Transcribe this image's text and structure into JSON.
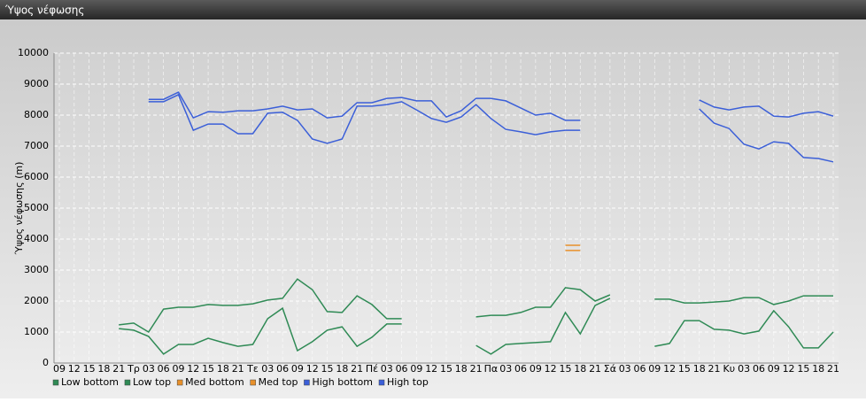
{
  "header": {
    "title": "Ύψος νέφωσης"
  },
  "chart_data": {
    "type": "line",
    "ylabel": "Ύψος νέφωσης (m)",
    "categories": [
      "09",
      "12",
      "15",
      "18",
      "21",
      "Τρ",
      "03",
      "06",
      "09",
      "12",
      "15",
      "18",
      "21",
      "Τε",
      "03",
      "06",
      "09",
      "12",
      "15",
      "18",
      "21",
      "Πέ",
      "03",
      "06",
      "09",
      "12",
      "15",
      "18",
      "21",
      "Πα",
      "03",
      "06",
      "09",
      "12",
      "15",
      "18",
      "21",
      "Σά",
      "03",
      "06",
      "09",
      "12",
      "15",
      "18",
      "21",
      "Κυ",
      "03",
      "06",
      "09",
      "12",
      "15",
      "18",
      "21"
    ],
    "ylim": [
      0,
      10000
    ],
    "yticks": [
      0,
      1000,
      2000,
      3000,
      4000,
      5000,
      6000,
      7000,
      8000,
      9000,
      10000
    ],
    "grid": true,
    "legend": "bottom",
    "series": [
      {
        "name": "Low bottom",
        "color": "#2f8a55",
        "values": [
          null,
          null,
          null,
          null,
          1110,
          1060,
          860,
          290,
          600,
          600,
          800,
          660,
          540,
          600,
          1430,
          1770,
          400,
          690,
          1060,
          1170,
          540,
          830,
          1260,
          1260,
          null,
          null,
          null,
          null,
          570,
          290,
          600,
          630,
          660,
          690,
          1630,
          940,
          1860,
          2090,
          null,
          null,
          540,
          630,
          1370,
          1370,
          1090,
          1060,
          940,
          1030,
          1690,
          1170,
          490,
          490,
          1000
        ]
      },
      {
        "name": "Low top",
        "color": "#2f8a55",
        "values": [
          null,
          null,
          null,
          null,
          1230,
          1290,
          1000,
          1740,
          1800,
          1800,
          1890,
          1860,
          1860,
          1910,
          2030,
          2090,
          2710,
          2370,
          1660,
          1630,
          2170,
          1890,
          1430,
          1430,
          null,
          null,
          null,
          null,
          1490,
          1540,
          1540,
          1630,
          1800,
          1800,
          2430,
          2370,
          2000,
          2200,
          null,
          null,
          2060,
          2060,
          1940,
          1940,
          1970,
          2000,
          2110,
          2110,
          1890,
          2000,
          2170,
          2170,
          2170
        ]
      },
      {
        "name": "Med bottom",
        "color": "#e8902a",
        "values": [
          null,
          null,
          null,
          null,
          null,
          null,
          null,
          null,
          null,
          null,
          null,
          null,
          null,
          null,
          null,
          null,
          null,
          null,
          null,
          null,
          null,
          null,
          null,
          null,
          null,
          null,
          null,
          null,
          null,
          null,
          null,
          null,
          null,
          null,
          3630,
          3630,
          null,
          null,
          null,
          null,
          null,
          null,
          null,
          null,
          null,
          null,
          null,
          null,
          null,
          null,
          null,
          null,
          null
        ]
      },
      {
        "name": "Med top",
        "color": "#e8902a",
        "values": [
          null,
          null,
          null,
          null,
          null,
          null,
          null,
          null,
          null,
          null,
          null,
          null,
          null,
          null,
          null,
          null,
          null,
          null,
          null,
          null,
          null,
          null,
          null,
          null,
          null,
          null,
          null,
          null,
          null,
          null,
          null,
          null,
          null,
          null,
          3800,
          3800,
          null,
          null,
          null,
          null,
          null,
          null,
          null,
          null,
          null,
          null,
          null,
          null,
          null,
          null,
          null,
          null,
          null
        ]
      },
      {
        "name": "High bottom",
        "color": "#3b5fd8",
        "values": [
          null,
          null,
          null,
          null,
          null,
          null,
          8430,
          8430,
          8660,
          7510,
          7710,
          7710,
          7400,
          7400,
          8060,
          8090,
          7830,
          7230,
          7090,
          7230,
          8290,
          8290,
          8340,
          8430,
          8170,
          7890,
          7770,
          7940,
          8340,
          7890,
          7540,
          7460,
          7370,
          7460,
          7510,
          7510,
          null,
          null,
          null,
          null,
          null,
          null,
          null,
          8200,
          7740,
          7570,
          7060,
          6910,
          7140,
          7090,
          6630,
          6600,
          6490
        ]
      },
      {
        "name": "High top",
        "color": "#3b5fd8",
        "values": [
          null,
          null,
          null,
          null,
          null,
          null,
          8510,
          8510,
          8740,
          7910,
          8110,
          8090,
          8140,
          8140,
          8200,
          8290,
          8170,
          8200,
          7910,
          7970,
          8400,
          8400,
          8540,
          8570,
          8460,
          8460,
          7940,
          8140,
          8540,
          8540,
          8460,
          8230,
          8000,
          8060,
          7830,
          7830,
          null,
          null,
          null,
          null,
          null,
          null,
          null,
          8490,
          8260,
          8170,
          8260,
          8290,
          7970,
          7940,
          8060,
          8110,
          7970
        ]
      }
    ]
  }
}
